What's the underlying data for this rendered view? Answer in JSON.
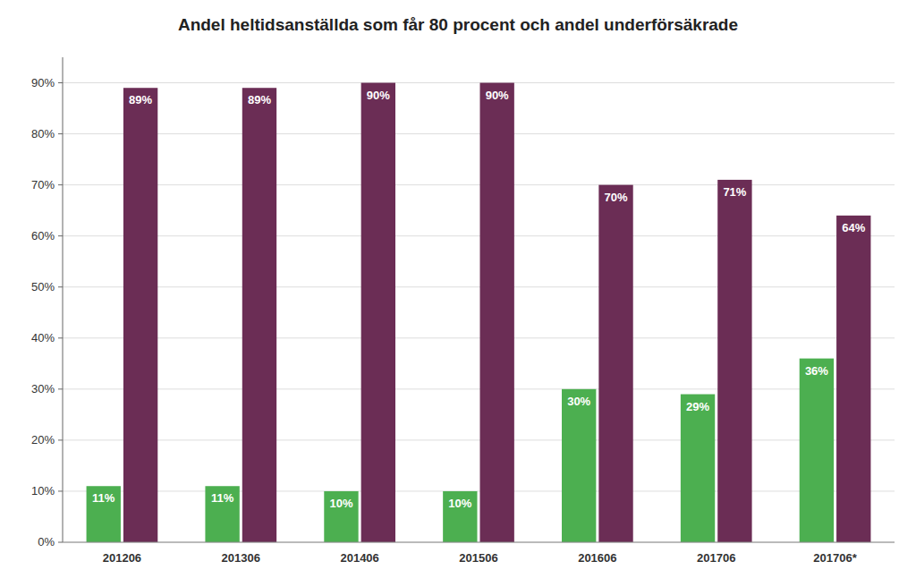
{
  "chart_data": {
    "type": "bar",
    "title": "Andel heltidsanställda som får 80 procent och andel underförsäkrade",
    "categories": [
      "201206",
      "201306",
      "201406",
      "201506",
      "201606",
      "201706",
      "201706*"
    ],
    "series": [
      {
        "color": "#4CAF50",
        "values": [
          11,
          11,
          10,
          10,
          30,
          29,
          36
        ],
        "value_labels": [
          "11%",
          "11%",
          "10%",
          "10%",
          "30%",
          "29%",
          "36%"
        ]
      },
      {
        "color": "#6B2D55",
        "values": [
          89,
          89,
          90,
          90,
          70,
          71,
          64
        ],
        "value_labels": [
          "89%",
          "89%",
          "90%",
          "90%",
          "70%",
          "71%",
          "64%"
        ]
      }
    ],
    "ylim": [
      0,
      95
    ],
    "yticks": [
      {
        "value": 0,
        "label": "0%"
      },
      {
        "value": 10,
        "label": "10%"
      },
      {
        "value": 20,
        "label": "20%"
      },
      {
        "value": 30,
        "label": "30%"
      },
      {
        "value": 40,
        "label": "40%"
      },
      {
        "value": 50,
        "label": "50%"
      },
      {
        "value": 60,
        "label": "60%"
      },
      {
        "value": 70,
        "label": "70%"
      },
      {
        "value": 80,
        "label": "80%"
      },
      {
        "value": 90,
        "label": "90%"
      }
    ],
    "grid": true,
    "data_labels": true
  }
}
